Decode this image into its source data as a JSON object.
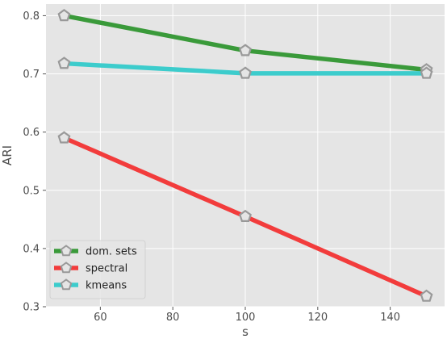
{
  "chart_data": {
    "type": "line",
    "title": "",
    "xlabel": "s",
    "ylabel": "ARI",
    "x": [
      50,
      100,
      150
    ],
    "xlim": [
      45,
      155
    ],
    "ylim": [
      0.3,
      0.82
    ],
    "xticks": [
      60,
      80,
      100,
      120,
      140
    ],
    "xtick_labels": [
      "60",
      "80",
      "100",
      "120",
      "140"
    ],
    "yticks": [
      0.3,
      0.4,
      0.5,
      0.6,
      0.7,
      0.8
    ],
    "ytick_labels": [
      "0.3",
      "0.4",
      "0.5",
      "0.6",
      "0.7",
      "0.8"
    ],
    "grid": true,
    "legend_position": "lower-left",
    "marker": "pentagon",
    "series": [
      {
        "name": "dom. sets",
        "color": "#3a9a3a",
        "values": [
          0.8,
          0.74,
          0.707
        ]
      },
      {
        "name": "spectral",
        "color": "#f23c3c",
        "values": [
          0.59,
          0.455,
          0.318
        ]
      },
      {
        "name": "kmeans",
        "color": "#3ccccc",
        "values": [
          0.718,
          0.701,
          0.701
        ]
      }
    ],
    "background": "#e5e5e5",
    "marker_edge": "#999999",
    "marker_fill": "#e5e5e5"
  }
}
